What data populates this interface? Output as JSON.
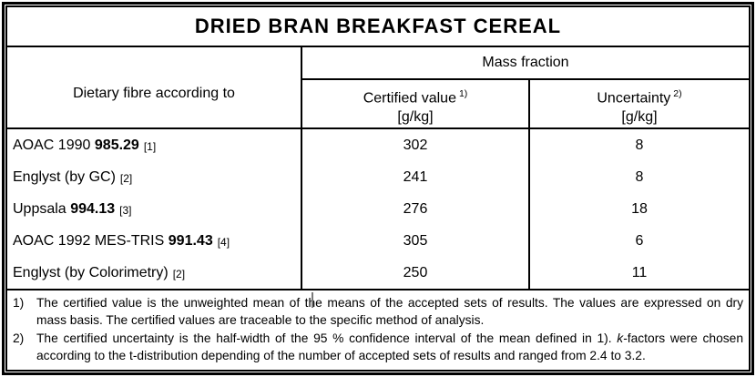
{
  "title": "DRIED BRAN BREAKFAST CEREAL",
  "table": {
    "row_header_label": "Dietary fibre according to",
    "group_header": "Mass fraction",
    "columns": [
      {
        "label": "Certified value",
        "footnote_ref": "1)",
        "unit": "[g/kg]"
      },
      {
        "label": "Uncertainty",
        "footnote_ref": "2)",
        "unit": "[g/kg]"
      }
    ],
    "rows": [
      {
        "method": "AOAC 1990",
        "method_bold": "985.29",
        "ref": "[1]",
        "certified_value": "302",
        "uncertainty": "8"
      },
      {
        "method": "Englyst (by GC)",
        "method_bold": "",
        "ref": "[2]",
        "certified_value": "241",
        "uncertainty": "8"
      },
      {
        "method": "Uppsala",
        "method_bold": "994.13",
        "ref": "[3]",
        "certified_value": "276",
        "uncertainty": "18"
      },
      {
        "method": "AOAC 1992 MES-TRIS",
        "method_bold": "991.43",
        "ref": "[4]",
        "certified_value": "305",
        "uncertainty": "6"
      },
      {
        "method": "Englyst (by Colorimetry)",
        "method_bold": "",
        "ref": "[2]",
        "certified_value": "250",
        "uncertainty": "11"
      }
    ]
  },
  "footnotes": [
    {
      "marker": "1)",
      "text": "The certified value is the unweighted mean of the means of the accepted sets of results. The values are expressed on dry mass basis. The certified values are traceable to the specific method of analysis."
    },
    {
      "marker": "2)",
      "text_before_italic": "The certified uncertainty is the half-width of the 95 % confidence interval of the mean defined in 1). ",
      "italic_text": "k",
      "text_after_italic": "-factors were chosen according to the t-distribution depending of the number of accepted sets of results and ranged from 2.4 to 3.2."
    }
  ],
  "colors": {
    "border": "#000000",
    "background": "#ffffff",
    "text": "#000000"
  }
}
